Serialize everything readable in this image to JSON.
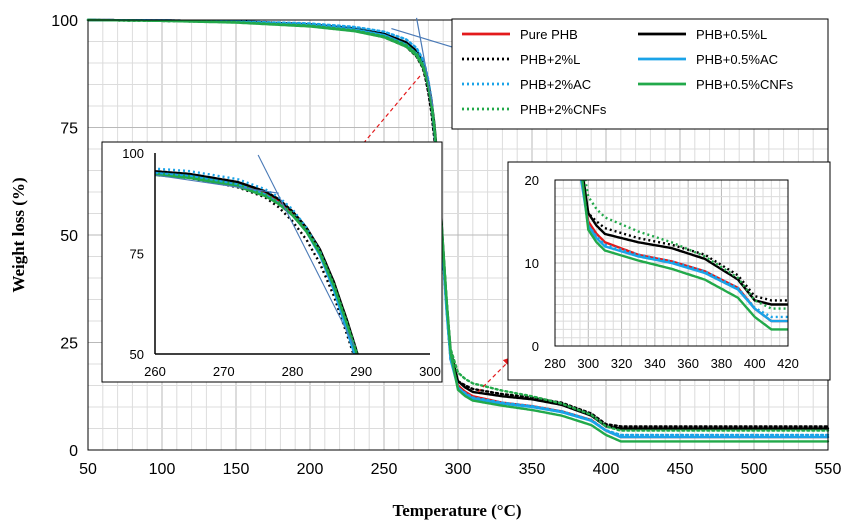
{
  "chart_data": [
    {
      "type": "line",
      "title": "",
      "xlabel": "Temperature (°C)",
      "ylabel": "Weight loss (%)",
      "xlim": [
        50,
        550
      ],
      "ylim": [
        0,
        100
      ],
      "xticks": [
        "50",
        "100",
        "150",
        "200",
        "250",
        "300",
        "350",
        "400",
        "450",
        "500",
        "550"
      ],
      "yticks": [
        "0",
        "25",
        "50",
        "75",
        "100"
      ],
      "grid": true,
      "legend_position": "top-right",
      "series": [
        {
          "name": "Pure PHB",
          "color": "#e31a1c",
          "dash": "solid",
          "x": [
            50,
            100,
            150,
            200,
            230,
            250,
            265,
            272,
            276,
            278,
            280,
            282,
            284,
            286,
            288,
            290,
            292,
            295,
            300,
            305,
            310,
            330,
            350,
            370,
            390,
            400,
            410,
            430,
            550
          ],
          "y": [
            100,
            99.9,
            99.6,
            98.8,
            97.8,
            96.5,
            94.5,
            92.5,
            90,
            88,
            85,
            81,
            75,
            67,
            57,
            46,
            35,
            22,
            15,
            13.5,
            12.5,
            11,
            10.2,
            9,
            7,
            4.5,
            3,
            3,
            3
          ]
        },
        {
          "name": "PHB+0.5%L",
          "color": "#000000",
          "dash": "solid",
          "x": [
            50,
            100,
            150,
            200,
            230,
            250,
            265,
            272,
            276,
            278,
            280,
            282,
            284,
            286,
            288,
            290,
            292,
            295,
            300,
            305,
            310,
            330,
            350,
            370,
            390,
            400,
            410,
            430,
            550
          ],
          "y": [
            100,
            99.9,
            99.7,
            99,
            98,
            96.8,
            94.8,
            92.8,
            90.5,
            88.5,
            85.5,
            81.5,
            76,
            68,
            58,
            47,
            36,
            23,
            16,
            14.5,
            13.5,
            12.5,
            11.8,
            10.5,
            8,
            5.5,
            5,
            5,
            5
          ]
        },
        {
          "name": "PHB+2%L",
          "color": "#000000",
          "dash": "dotted",
          "x": [
            50,
            100,
            150,
            200,
            230,
            250,
            265,
            272,
            276,
            278,
            280,
            282,
            284,
            286,
            288,
            290,
            292,
            295,
            300,
            305,
            310,
            330,
            350,
            370,
            390,
            400,
            410,
            430,
            550
          ],
          "y": [
            100,
            99.8,
            99.5,
            98.6,
            97.5,
            96,
            93.8,
            91.5,
            89,
            86.5,
            83,
            78.5,
            72.5,
            64.5,
            54.5,
            44,
            34,
            21,
            16,
            15,
            14.2,
            13,
            12.2,
            11,
            8.5,
            6,
            5.5,
            5.5,
            5.5
          ]
        },
        {
          "name": "PHB+0.5%AC",
          "color": "#1aa3e8",
          "dash": "solid",
          "x": [
            50,
            100,
            150,
            200,
            230,
            250,
            265,
            272,
            276,
            278,
            280,
            282,
            284,
            286,
            288,
            290,
            292,
            295,
            300,
            305,
            310,
            330,
            350,
            370,
            390,
            400,
            410,
            430,
            550
          ],
          "y": [
            100,
            99.9,
            99.6,
            98.8,
            97.8,
            96.5,
            94.3,
            92.2,
            89.7,
            87.5,
            84.5,
            80.5,
            74.5,
            66,
            55.5,
            44.5,
            33.5,
            21,
            14.5,
            13,
            12,
            10.8,
            10,
            8.8,
            6.8,
            4.5,
            3,
            3,
            3
          ]
        },
        {
          "name": "PHB+2%AC",
          "color": "#1aa3e8",
          "dash": "dotted",
          "x": [
            50,
            100,
            150,
            200,
            230,
            250,
            265,
            272,
            276,
            278,
            280,
            282,
            284,
            286,
            288,
            290,
            292,
            295,
            300,
            305,
            310,
            330,
            350,
            370,
            390,
            400,
            410,
            430,
            550
          ],
          "y": [
            100,
            99.9,
            99.7,
            99.2,
            98.4,
            97.3,
            95.5,
            93.5,
            91,
            89,
            86,
            81.5,
            75.5,
            67,
            56.5,
            45.5,
            34.5,
            21.5,
            14.5,
            13.2,
            12.2,
            11,
            10.2,
            9,
            7,
            4.6,
            3.5,
            3.5,
            3.5
          ]
        },
        {
          "name": "PHB+0.5%CNFs",
          "color": "#22a94a",
          "dash": "solid",
          "x": [
            50,
            100,
            150,
            200,
            230,
            250,
            265,
            272,
            276,
            278,
            280,
            282,
            284,
            286,
            288,
            290,
            292,
            295,
            300,
            305,
            310,
            330,
            350,
            370,
            390,
            400,
            410,
            430,
            550
          ],
          "y": [
            100,
            99.8,
            99.4,
            98.5,
            97.4,
            96,
            93.8,
            91.7,
            89.3,
            87.3,
            84.5,
            80.5,
            75,
            67,
            57,
            46.5,
            36,
            22.5,
            14,
            12.5,
            11.5,
            10.3,
            9.3,
            8,
            5.8,
            3.5,
            2,
            2,
            2
          ]
        },
        {
          "name": "PHB+2%CNFs",
          "color": "#22a94a",
          "dash": "dotted",
          "x": [
            50,
            100,
            150,
            200,
            230,
            250,
            265,
            272,
            276,
            278,
            280,
            282,
            284,
            286,
            288,
            290,
            292,
            295,
            300,
            305,
            310,
            330,
            350,
            370,
            390,
            400,
            410,
            430,
            550
          ],
          "y": [
            100,
            99.8,
            99.5,
            98.7,
            97.6,
            96.2,
            94.2,
            92.2,
            89.8,
            87.8,
            85,
            81,
            75.5,
            67.5,
            57.5,
            47,
            36.5,
            23.5,
            18,
            16.5,
            15.5,
            13.8,
            12.5,
            10.8,
            8.2,
            5.5,
            4.5,
            4.5,
            4.5
          ]
        }
      ]
    },
    {
      "type": "line",
      "title": "",
      "inset": "left",
      "xlim": [
        260,
        300
      ],
      "ylim": [
        50,
        100
      ],
      "xticks": [
        "260",
        "270",
        "280",
        "290",
        "300"
      ],
      "yticks": [
        "50",
        "75",
        "100"
      ],
      "grid": false
    },
    {
      "type": "line",
      "title": "",
      "inset": "right",
      "xlim": [
        280,
        420
      ],
      "ylim": [
        0,
        20
      ],
      "xticks": [
        "280",
        "300",
        "320",
        "340",
        "360",
        "380",
        "400",
        "420"
      ],
      "yticks": [
        "0",
        "10",
        "20"
      ],
      "grid": true
    }
  ]
}
